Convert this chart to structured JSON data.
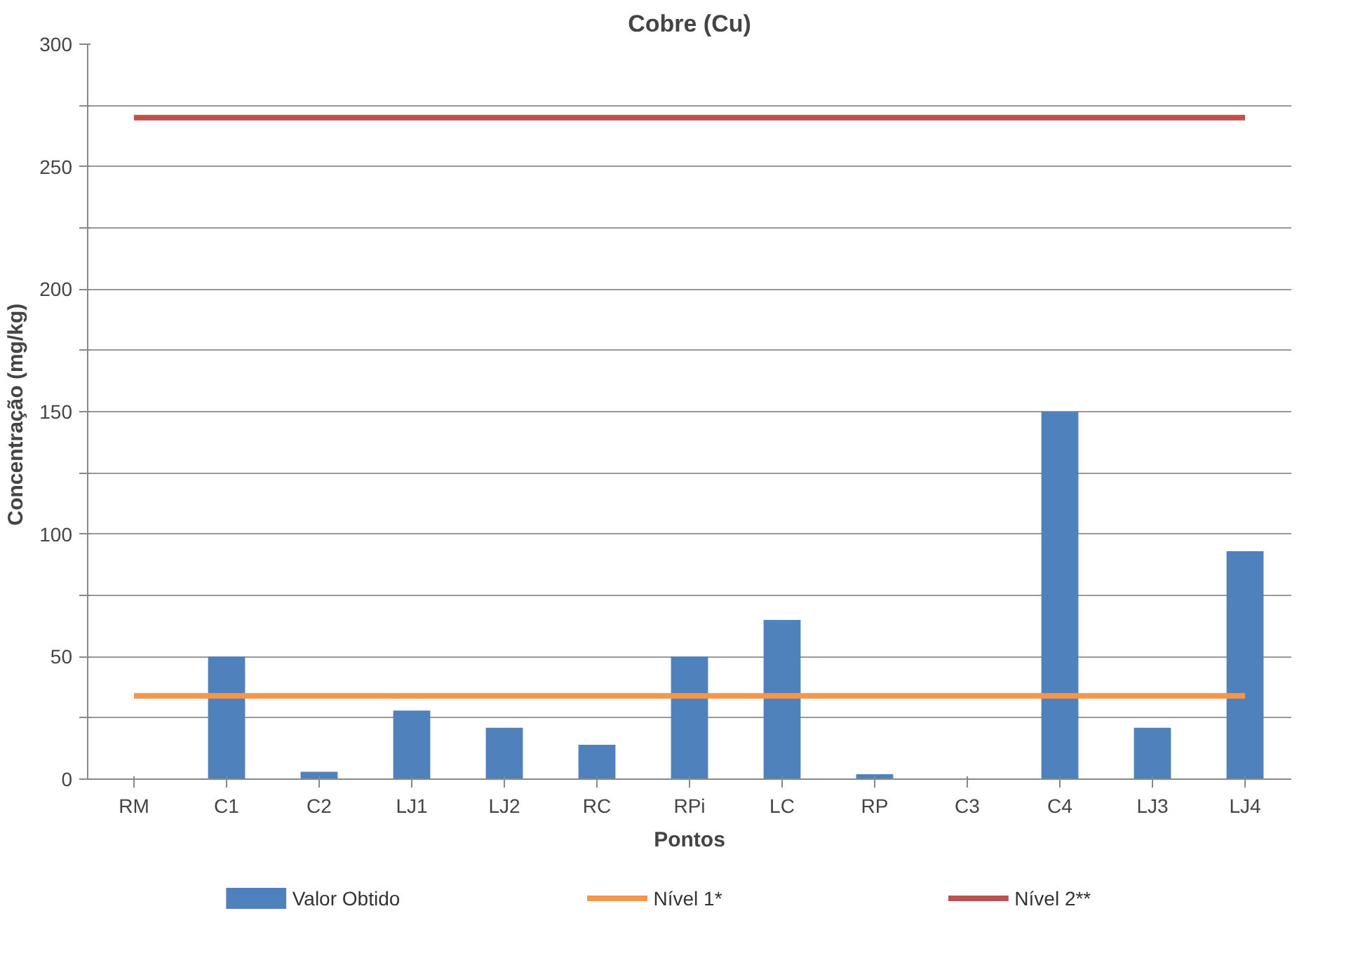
{
  "chart_data": {
    "type": "bar",
    "title": "Cobre (Cu)",
    "xlabel": "Pontos",
    "ylabel": "Concentração  (mg/kg)",
    "categories": [
      "RM",
      "C1",
      "C2",
      "LJ1",
      "LJ2",
      "RC",
      "RPi",
      "LC",
      "RP",
      "C3",
      "C4",
      "LJ3",
      "LJ4"
    ],
    "series": [
      {
        "name": "Valor Obtido",
        "color": "#4f81bd",
        "values": [
          0,
          50,
          3,
          28,
          21,
          14,
          50,
          65,
          2,
          0,
          150,
          21,
          93
        ]
      }
    ],
    "ylim": [
      0,
      300
    ],
    "yticks": [
      0,
      {
        "value": 25,
        "label": null
      },
      50,
      {
        "value": 75,
        "label": null
      },
      100,
      {
        "value": 125,
        "label": null
      },
      150,
      {
        "value": 175,
        "label": null
      },
      200,
      {
        "value": 225,
        "label": null
      },
      250,
      {
        "value": 275,
        "label": null
      },
      300
    ],
    "ref_lines": [
      {
        "axis": "y",
        "value": 34,
        "label": "Nível 1*",
        "color": "#f79646"
      },
      {
        "axis": "y",
        "value": 270,
        "label": "Nível 2**",
        "color": "#c0504d"
      }
    ],
    "grid": "y",
    "legend": "bottom"
  }
}
